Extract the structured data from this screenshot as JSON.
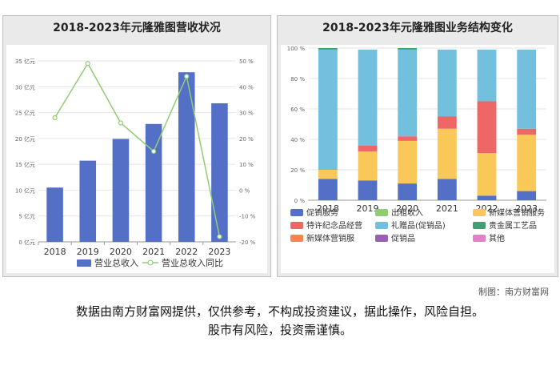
{
  "chart_data": [
    {
      "type": "bar+line",
      "title": "2018-2023年元隆雅图营收状况",
      "categories": [
        "2018",
        "2019",
        "2020",
        "2021",
        "2022",
        "2023"
      ],
      "y_left": {
        "ticks": [
          "0 亿元",
          "5 亿元",
          "10 亿元",
          "15 亿元",
          "20 亿元",
          "25 亿元",
          "30 亿元",
          "35 亿元"
        ],
        "range": [
          0,
          35
        ]
      },
      "y_right": {
        "ticks": [
          "-20 %",
          "-10 %",
          "0 %",
          "10 %",
          "20 %",
          "30 %",
          "40 %",
          "50 %"
        ],
        "range": [
          -20,
          50
        ]
      },
      "series": [
        {
          "name": "营业总收入",
          "kind": "bar",
          "color": "#5470c6",
          "values": [
            10.5,
            15.7,
            19.9,
            22.8,
            32.8,
            26.8
          ]
        },
        {
          "name": "营业总收入同比",
          "kind": "line",
          "color": "#91cc75",
          "values": [
            28,
            49,
            26,
            15,
            44,
            -18
          ]
        }
      ],
      "legend": "bottom"
    },
    {
      "type": "stacked-bar-percent",
      "title": "2018-2023年元隆雅图业务结构变化",
      "categories": [
        "2018",
        "2019",
        "2020",
        "2021",
        "2022",
        "2023"
      ],
      "y_ticks": [
        "0 %",
        "20 %",
        "40 %",
        "60 %",
        "80 %",
        "100 %"
      ],
      "series": [
        {
          "name": "促销服务",
          "color": "#5470c6",
          "values": [
            14,
            13,
            11,
            14,
            3,
            6
          ]
        },
        {
          "name": "出租收入",
          "color": "#91cc75",
          "values": [
            0,
            0,
            0,
            0,
            0,
            0
          ]
        },
        {
          "name": "新媒体营销服务",
          "color": "#fac858",
          "values": [
            6,
            19,
            28,
            33,
            28,
            37
          ]
        },
        {
          "name": "特许纪念品经营",
          "color": "#ee6666",
          "values": [
            0,
            4,
            3,
            8,
            34,
            4
          ]
        },
        {
          "name": "礼赠品(促销品)",
          "color": "#73c0de",
          "values": [
            79,
            63,
            57,
            44,
            34,
            52
          ]
        },
        {
          "name": "贵金属工艺品",
          "color": "#3ba272",
          "values": [
            1,
            0,
            1,
            0,
            0,
            0
          ]
        },
        {
          "name": "新媒体营销服",
          "color": "#fc8452",
          "values": [
            0,
            0,
            0,
            0,
            0,
            0
          ]
        },
        {
          "name": "促销品",
          "color": "#9a60b4",
          "values": [
            0,
            0,
            0,
            0,
            0,
            0
          ]
        },
        {
          "name": "其他",
          "color": "#ea7ccc",
          "values": [
            0,
            0,
            0,
            0,
            0,
            0
          ]
        }
      ],
      "legend": "bottom"
    }
  ],
  "credit": "制图：南方财富网",
  "disclaimer": [
    "数据由南方财富网提供，仅供参考，不构成投资建议，据此操作，风险自担。",
    "股市有风险，投资需谨慎。"
  ]
}
